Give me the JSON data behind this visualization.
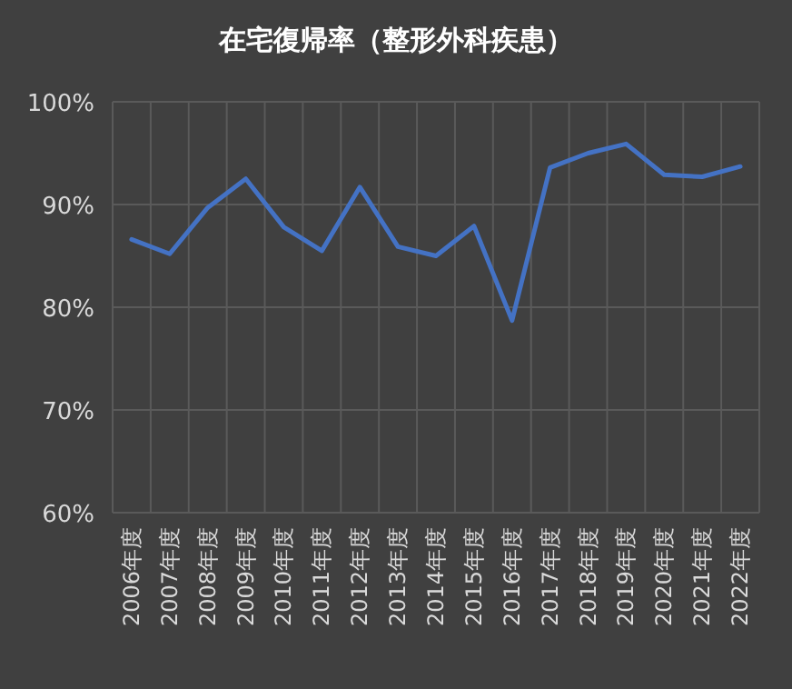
{
  "chart_data": {
    "type": "line",
    "title": "在宅復帰率（整形外科疾患）",
    "categories": [
      "2006年度",
      "2007年度",
      "2008年度",
      "2009年度",
      "2010年度",
      "2011年度",
      "2012年度",
      "2013年度",
      "2014年度",
      "2015年度",
      "2016年度",
      "2017年度",
      "2018年度",
      "2019年度",
      "2020年度",
      "2021年度",
      "2022年度"
    ],
    "series": [
      {
        "color": "#4472c4",
        "values": [
          86.6,
          85.2,
          89.7,
          92.5,
          87.8,
          85.5,
          91.7,
          85.9,
          85.0,
          87.9,
          78.7,
          93.6,
          95.0,
          95.9,
          92.9,
          92.7,
          93.7
        ]
      }
    ],
    "ylim": [
      60,
      100
    ],
    "yticks": [
      {
        "value": 60,
        "label": "60%"
      },
      {
        "value": 70,
        "label": "70%"
      },
      {
        "value": 80,
        "label": "80%"
      },
      {
        "value": 90,
        "label": "90%"
      },
      {
        "value": 100,
        "label": "100%"
      }
    ],
    "grid": true,
    "marker": "none",
    "line_style": "solid"
  }
}
